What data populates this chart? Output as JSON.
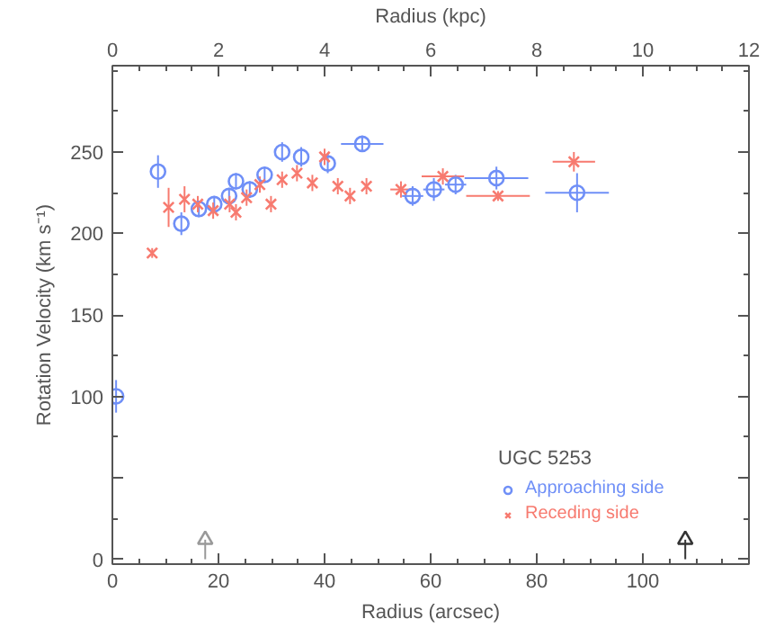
{
  "chart_data": {
    "type": "scatter",
    "xlabel": "Radius (arcsec)",
    "ylabel": "Rotation Velocity (km s⁻¹)",
    "x2label": "Radius (kpc)",
    "legend_title": "UGC 5253",
    "legend": "bottom right",
    "grid": false,
    "xlim": [
      0,
      120
    ],
    "xticks": [
      0,
      20,
      40,
      60,
      80,
      100
    ],
    "x2lim": [
      0,
      12
    ],
    "x2ticks": [
      0,
      2,
      4,
      6,
      8,
      10,
      12
    ],
    "ylim": [
      -3,
      303
    ],
    "yticks": [
      0,
      {
        "value": 50,
        "label": null
      },
      100,
      150,
      200,
      250
    ],
    "series": [
      {
        "name": "Approaching side",
        "color": "#6f8ff7",
        "marker": "circle",
        "x": [
          0.7,
          8.6,
          13,
          16.3,
          19.2,
          22,
          23.3,
          25.9,
          28.7,
          32,
          35.6,
          40.6,
          47.1,
          56.6,
          60.6,
          64.7,
          72.4,
          87.6
        ],
        "values": [
          100,
          238,
          206,
          215,
          218,
          223,
          232,
          227,
          236,
          250,
          247,
          243,
          255,
          223,
          227,
          230,
          234,
          225
        ],
        "errors": [
          10,
          10,
          7,
          5,
          5,
          5,
          5,
          5,
          5,
          6,
          6,
          6,
          5,
          6,
          7,
          6,
          7,
          12
        ],
        "xerrors": [
          null,
          null,
          null,
          null,
          null,
          null,
          null,
          null,
          null,
          null,
          null,
          null,
          4,
          2,
          2,
          2,
          6,
          6
        ]
      },
      {
        "name": "Receding side",
        "color": "#f77a6f",
        "marker": "cross",
        "x": [
          7.5,
          10.6,
          13.6,
          16.1,
          19,
          22.1,
          23.3,
          25.3,
          27.8,
          29.9,
          32,
          34.8,
          37.7,
          40,
          42.5,
          44.8,
          47.9,
          54.4,
          62.3,
          72.7,
          87
        ],
        "values": [
          188,
          216,
          221,
          218,
          214,
          218,
          213,
          222,
          230,
          218,
          233,
          237,
          231,
          247,
          229,
          223,
          229,
          227,
          235,
          223,
          244
        ],
        "errors": [
          3,
          12,
          8,
          5,
          5,
          5,
          5,
          5,
          5,
          5,
          5,
          5,
          5,
          5,
          5,
          5,
          5,
          5,
          5,
          3,
          6
        ],
        "xerrors": [
          null,
          null,
          null,
          null,
          null,
          null,
          null,
          null,
          null,
          null,
          null,
          null,
          null,
          null,
          null,
          null,
          null,
          2,
          4,
          6,
          4
        ]
      },
      {
        "marker": "triangle",
        "colors": [
          "#999999",
          "#333333"
        ],
        "x": [
          17.5,
          108
        ],
        "values": [
          12,
          12
        ],
        "errors": [
          [
            12,
            0
          ],
          [
            12,
            0
          ]
        ]
      }
    ]
  }
}
